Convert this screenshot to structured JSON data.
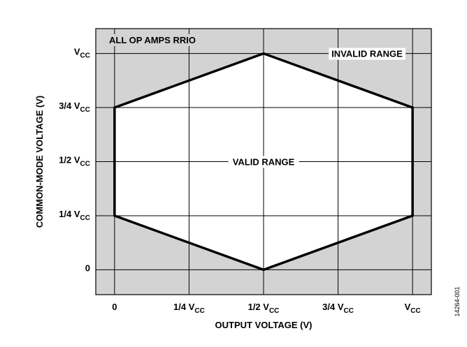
{
  "figure_code": "14264-001",
  "chart_data": {
    "type": "area",
    "xlabel": "OUTPUT VOLTAGE (V)",
    "ylabel": "COMMON-MODE VOLTAGE (V)",
    "x_ticks": [
      {
        "value": 0,
        "label": "0",
        "sub": ""
      },
      {
        "value": 0.25,
        "label": "1/4 V",
        "sub": "CC"
      },
      {
        "value": 0.5,
        "label": "1/2 V",
        "sub": "CC"
      },
      {
        "value": 0.75,
        "label": "3/4 V",
        "sub": "CC"
      },
      {
        "value": 1,
        "label": "V",
        "sub": "CC"
      }
    ],
    "y_ticks": [
      {
        "value": 0,
        "label": "0",
        "sub": ""
      },
      {
        "value": 0.25,
        "label": "1/4 V",
        "sub": "CC"
      },
      {
        "value": 0.5,
        "label": "1/2 V",
        "sub": "CC"
      },
      {
        "value": 0.75,
        "label": "3/4 V",
        "sub": "CC"
      },
      {
        "value": 1,
        "label": "V",
        "sub": "CC"
      }
    ],
    "xlim": [
      -0.063,
      1.063
    ],
    "ylim": [
      -0.115,
      1.115
    ],
    "grid": true,
    "valid_region": {
      "x": [
        0,
        0,
        0.5,
        1,
        1,
        0.5
      ],
      "y": [
        0.25,
        0.75,
        1,
        0.75,
        0.25,
        0
      ]
    },
    "annotations": {
      "corner_note": "ALL OP AMPS RRIO",
      "invalid_label": "INVALID RANGE",
      "valid_label": "VALID RANGE"
    },
    "colors": {
      "invalid_fill": "#d3d3d3",
      "valid_fill": "#ffffff",
      "line": "#000000"
    }
  }
}
